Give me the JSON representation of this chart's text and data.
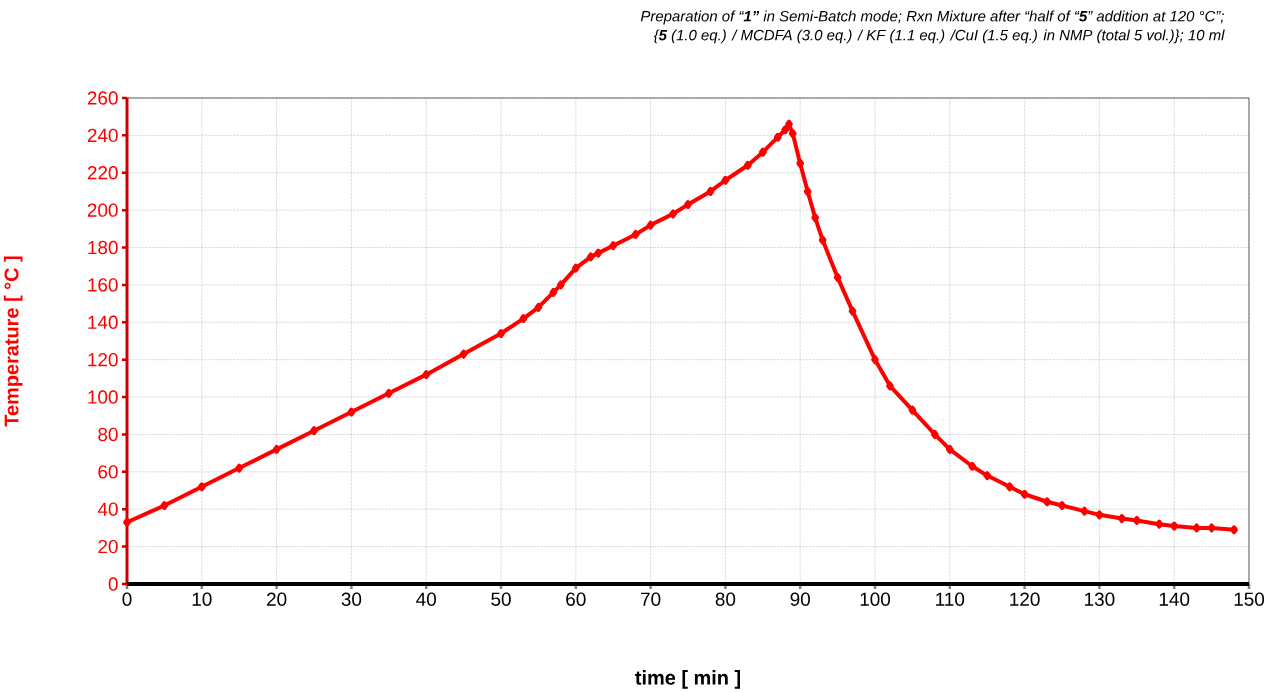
{
  "chart_data": {
    "type": "line",
    "title": "Preparation of “**1”** in Semi-Batch mode; Rxn Mixture after “half of “**5**” addition at 120 °C”;",
    "subtitle": "{**5** (1.0 eq.) / MCDFA (3.0 eq.) / KF (1.1 eq.) /CuI (1.5 eq.) in NMP (total 5 vol.)}; 10 ml",
    "xlabel": "time  [ min ]",
    "ylabel": "Temperature  [ °C ]",
    "x": [
      0,
      5,
      10,
      15,
      20,
      25,
      30,
      35,
      40,
      45,
      50,
      53,
      55,
      57,
      58,
      60,
      62,
      63,
      65,
      68,
      70,
      73,
      75,
      78,
      80,
      83,
      85,
      87,
      88,
      88.5,
      89,
      90,
      91,
      92,
      93,
      95,
      97,
      100,
      102,
      105,
      108,
      110,
      113,
      115,
      118,
      120,
      123,
      125,
      128,
      130,
      133,
      135,
      138,
      140,
      143,
      145,
      148
    ],
    "series": [
      {
        "color": "#ff0000",
        "values": [
          33,
          42,
          52,
          62,
          72,
          82,
          92,
          102,
          112,
          123,
          134,
          142,
          148,
          156,
          160,
          169,
          175,
          177,
          181,
          187,
          192,
          198,
          203,
          210,
          216,
          224,
          231,
          239,
          243,
          246,
          241,
          225,
          210,
          196,
          184,
          164,
          146,
          120,
          106,
          93,
          80,
          72,
          63,
          58,
          52,
          48,
          44,
          42,
          39,
          37,
          35,
          34,
          32,
          31,
          30,
          30,
          29
        ]
      }
    ],
    "xlim": [
      0,
      150
    ],
    "ylim": [
      0,
      260
    ],
    "xticks": [
      0,
      10,
      20,
      30,
      40,
      50,
      60,
      70,
      80,
      90,
      100,
      110,
      120,
      130,
      140,
      150
    ],
    "yticks": [
      0,
      20,
      40,
      60,
      80,
      100,
      120,
      140,
      160,
      180,
      200,
      220,
      240,
      260
    ],
    "grid": true,
    "marker": "diamond",
    "line_style": "solid"
  }
}
